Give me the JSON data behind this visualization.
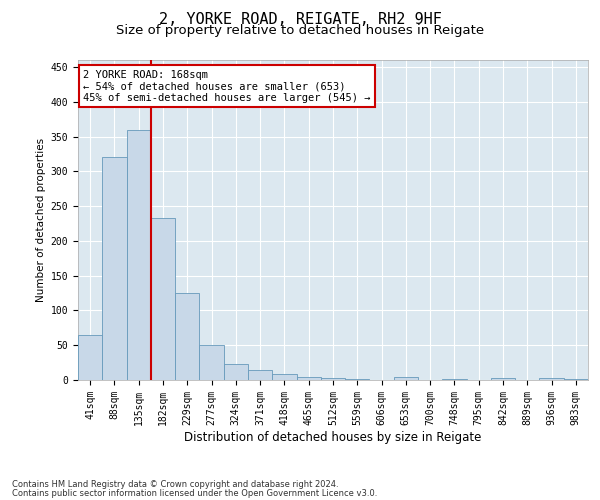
{
  "title": "2, YORKE ROAD, REIGATE, RH2 9HF",
  "subtitle": "Size of property relative to detached houses in Reigate",
  "xlabel": "Distribution of detached houses by size in Reigate",
  "ylabel": "Number of detached properties",
  "footer1": "Contains HM Land Registry data © Crown copyright and database right 2024.",
  "footer2": "Contains public sector information licensed under the Open Government Licence v3.0.",
  "categories": [
    "41sqm",
    "88sqm",
    "135sqm",
    "182sqm",
    "229sqm",
    "277sqm",
    "324sqm",
    "371sqm",
    "418sqm",
    "465sqm",
    "512sqm",
    "559sqm",
    "606sqm",
    "653sqm",
    "700sqm",
    "748sqm",
    "795sqm",
    "842sqm",
    "889sqm",
    "936sqm",
    "983sqm"
  ],
  "values": [
    65,
    320,
    360,
    233,
    125,
    50,
    23,
    14,
    9,
    5,
    3,
    1,
    0,
    4,
    0,
    1,
    0,
    3,
    0,
    3,
    2
  ],
  "bar_color": "#c8d8e8",
  "bar_edge_color": "#6699bb",
  "vline_x": 2.5,
  "vline_color": "#cc0000",
  "annotation_line1": "2 YORKE ROAD: 168sqm",
  "annotation_line2": "← 54% of detached houses are smaller (653)",
  "annotation_line3": "45% of semi-detached houses are larger (545) →",
  "annotation_box_color": "#cc0000",
  "ylim": [
    0,
    460
  ],
  "yticks": [
    0,
    50,
    100,
    150,
    200,
    250,
    300,
    350,
    400,
    450
  ],
  "fig_bg": "#ffffff",
  "plot_bg": "#dce8f0",
  "grid_color": "#ffffff",
  "title_fontsize": 11,
  "subtitle_fontsize": 9.5,
  "xlabel_fontsize": 8.5,
  "ylabel_fontsize": 7.5,
  "tick_fontsize": 7,
  "footer_fontsize": 6,
  "ann_fontsize": 7.5
}
